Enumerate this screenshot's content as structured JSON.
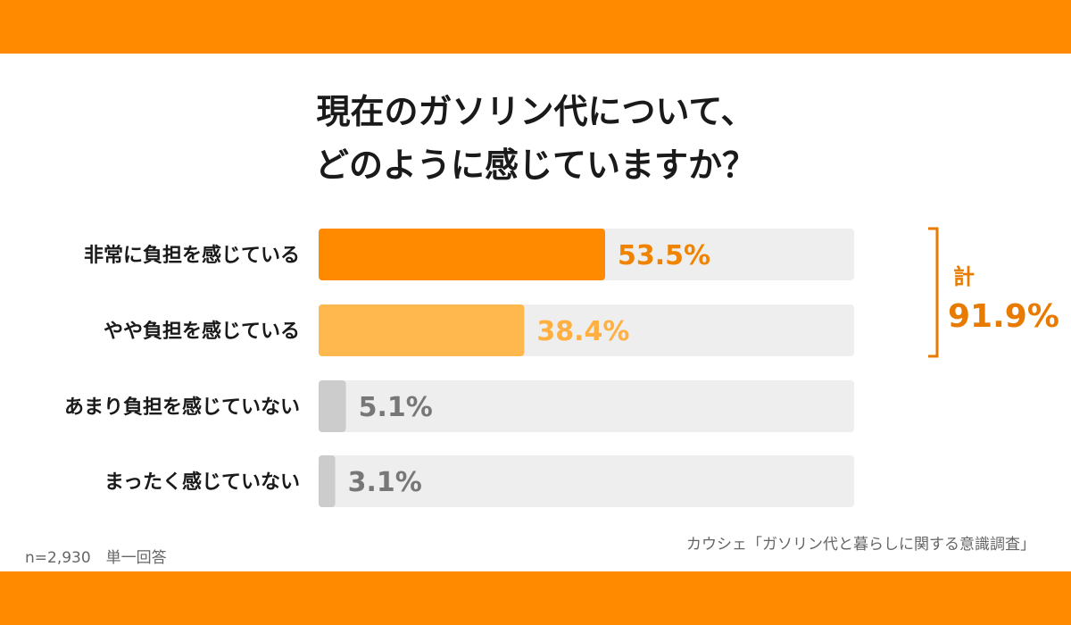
{
  "chart_data": {
    "type": "bar",
    "orientation": "horizontal",
    "title_lines": [
      "現在のガソリン代について、",
      "どのように感じていますか？"
    ],
    "categories": [
      "非常に負担を感じている",
      "やや負担を感じている",
      "あまり負担を感じていない",
      "まったく感じていない"
    ],
    "values": [
      53.5,
      38.4,
      5.1,
      3.1
    ],
    "value_labels": [
      "53.5%",
      "38.4%",
      "5.1%",
      "3.1%"
    ],
    "xlim": [
      0,
      100
    ],
    "bar_colors": [
      "#ff8a00",
      "#ffb84d",
      "#cccccc",
      "#cccccc"
    ],
    "label_colors": [
      "#f08300",
      "#ffb040",
      "#777777",
      "#777777"
    ],
    "track_color": "#eeeeee",
    "bracket": {
      "label": "計",
      "value": "91.9%",
      "spans_categories": [
        0,
        1
      ],
      "color": "#e87a00"
    },
    "sample_note": "n=2,930　単一回答",
    "source_note": "カウシェ「ガソリン代と暮らしに関する意識調査」"
  },
  "colors": {
    "frame": "#ff8a00",
    "panel": "#ffffff"
  }
}
